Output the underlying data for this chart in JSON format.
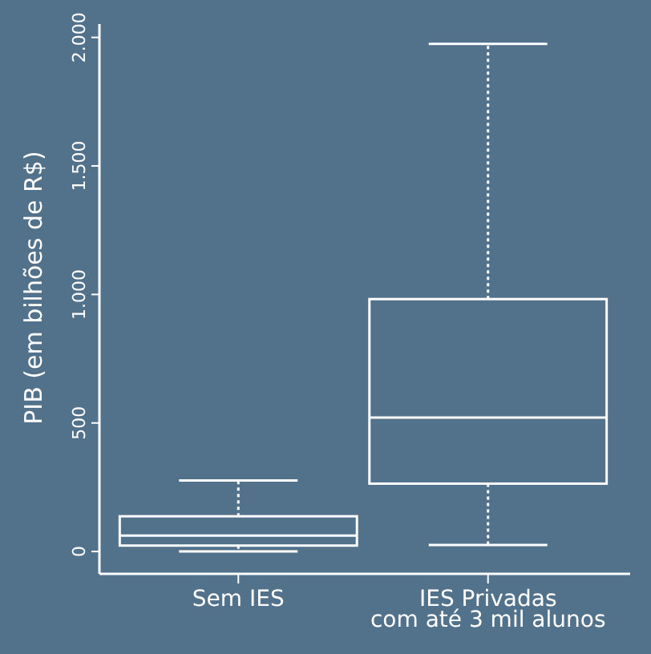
{
  "chart_data": {
    "type": "box",
    "ylabel": "PIB (em bilhões de R$)",
    "categories": [
      "Sem IES",
      "IES Privadas\ncom até 3 mil alunos"
    ],
    "boxes": [
      {
        "low": 0,
        "q1": 23,
        "median": 62,
        "q3": 137,
        "high": 276
      },
      {
        "low": 25,
        "q1": 264,
        "median": 521,
        "q3": 982,
        "high": 1975
      }
    ],
    "ylim": [
      -87,
      2052
    ],
    "yticks": [
      0,
      500,
      {
        "value": 1000,
        "label": "1.000"
      },
      {
        "value": 1500,
        "label": "1.500"
      },
      {
        "value": 2000,
        "label": "2.000"
      }
    ],
    "grid": false,
    "color": "#ffffff"
  }
}
